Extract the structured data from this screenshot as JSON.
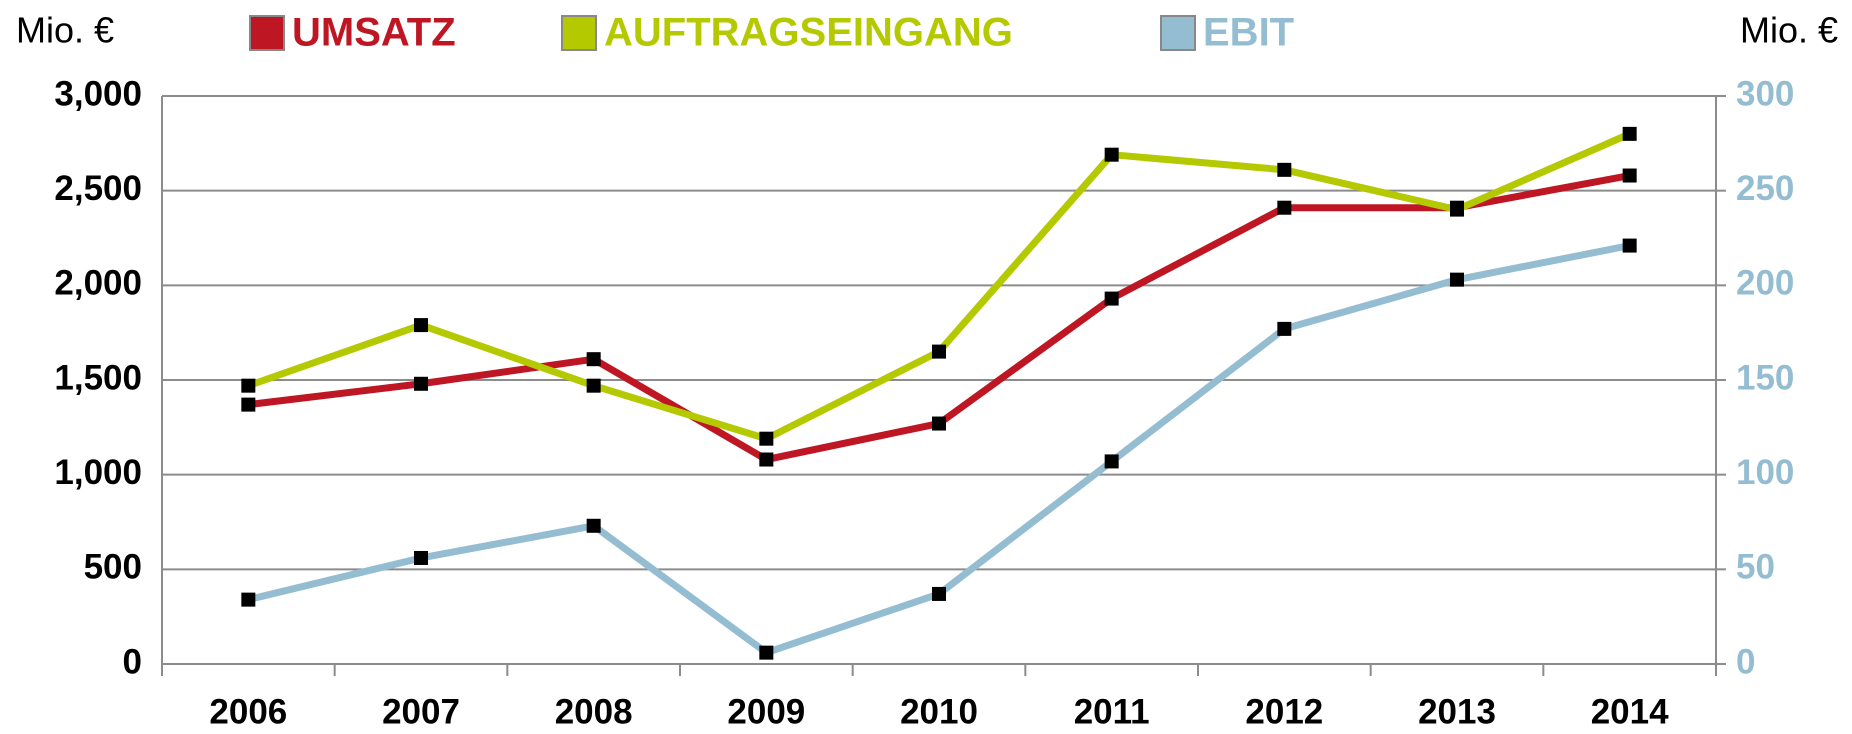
{
  "chart_data": {
    "type": "line",
    "y_unit": "Mio. €",
    "y2_unit": "Mio. €",
    "categories": [
      "2006",
      "2007",
      "2008",
      "2009",
      "2010",
      "2011",
      "2012",
      "2013",
      "2014"
    ],
    "series": [
      {
        "name": "UMSATZ",
        "color": "#be1622",
        "values": [
          1370,
          1480,
          1610,
          1080,
          1270,
          1930,
          2410,
          2410,
          2580
        ]
      },
      {
        "name": "AUFTRAGSEINGANG",
        "color": "#b5c900",
        "values": [
          1470,
          1790,
          1470,
          1190,
          1650,
          2690,
          2610,
          2400,
          2800
        ]
      },
      {
        "name": "EBIT",
        "color": "#94bdd1",
        "axis": "y2",
        "values": [
          34,
          56,
          73,
          6,
          37,
          107,
          177,
          203,
          221
        ]
      }
    ],
    "ylim": [
      0,
      3000
    ],
    "yticks": [
      0,
      500,
      {
        "value": 1000,
        "label": "1,000"
      },
      {
        "value": 1500,
        "label": "1,500"
      },
      {
        "value": 2000,
        "label": "2,000"
      },
      {
        "value": 2500,
        "label": "2,500"
      },
      {
        "value": 3000,
        "label": "3,000"
      }
    ],
    "y2lim": [
      0,
      300
    ],
    "y2ticks": [
      0,
      50,
      100,
      150,
      200,
      250,
      300
    ],
    "grid": true,
    "legend": "top",
    "marker_color": "#000000"
  }
}
